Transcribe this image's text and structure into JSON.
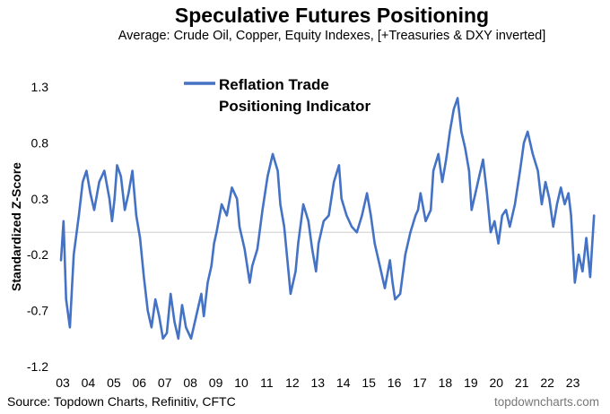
{
  "chart_data": {
    "type": "line",
    "title": "Speculative Futures Positioning",
    "subtitle": "Average: Crude Oil, Copper, Equity Indexes, [+Treasuries & DXY inverted]",
    "ylabel": "Standardized Z-Score",
    "xlabel": "",
    "ylim": [
      -1.2,
      1.3
    ],
    "yticks": [
      "1.3",
      "0.8",
      "0.3",
      "-0.2",
      "-0.7",
      "-1.2"
    ],
    "xlim": [
      2003,
      2024
    ],
    "xticks": [
      "03",
      "04",
      "05",
      "06",
      "07",
      "08",
      "09",
      "10",
      "11",
      "12",
      "13",
      "14",
      "15",
      "16",
      "17",
      "18",
      "19",
      "20",
      "21",
      "22",
      "23"
    ],
    "legend": {
      "label_line1": "Reflation Trade",
      "label_line2": "Positioning Indicator",
      "position": "top-center"
    },
    "color": "#4472C4",
    "series": [
      {
        "name": "Reflation Trade Positioning Indicator",
        "x": [
          2003.0,
          2003.1,
          2003.2,
          2003.35,
          2003.5,
          2003.7,
          2003.85,
          2004.0,
          2004.15,
          2004.3,
          2004.5,
          2004.7,
          2004.9,
          2005.0,
          2005.1,
          2005.2,
          2005.35,
          2005.5,
          2005.65,
          2005.8,
          2005.95,
          2006.1,
          2006.25,
          2006.4,
          2006.55,
          2006.7,
          2006.85,
          2007.0,
          2007.15,
          2007.3,
          2007.45,
          2007.6,
          2007.75,
          2007.9,
          2008.1,
          2008.3,
          2008.5,
          2008.6,
          2008.75,
          2008.9,
          2009.0,
          2009.1,
          2009.3,
          2009.5,
          2009.7,
          2009.9,
          2010.0,
          2010.2,
          2010.4,
          2010.5,
          2010.7,
          2010.9,
          2011.1,
          2011.3,
          2011.5,
          2011.6,
          2011.75,
          2011.9,
          2012.0,
          2012.2,
          2012.3,
          2012.5,
          2012.7,
          2012.85,
          2013.0,
          2013.1,
          2013.3,
          2013.5,
          2013.7,
          2013.9,
          2014.0,
          2014.2,
          2014.4,
          2014.6,
          2014.8,
          2015.0,
          2015.15,
          2015.3,
          2015.5,
          2015.7,
          2015.9,
          2016.0,
          2016.1,
          2016.3,
          2016.5,
          2016.7,
          2016.9,
          2017.0,
          2017.1,
          2017.3,
          2017.5,
          2017.6,
          2017.8,
          2017.95,
          2018.1,
          2018.25,
          2018.4,
          2018.55,
          2018.7,
          2018.85,
          2019.0,
          2019.1,
          2019.25,
          2019.4,
          2019.55,
          2019.7,
          2019.85,
          2020.0,
          2020.15,
          2020.3,
          2020.45,
          2020.6,
          2020.8,
          2021.0,
          2021.15,
          2021.3,
          2021.5,
          2021.7,
          2021.85,
          2022.0,
          2022.15,
          2022.3,
          2022.45,
          2022.6,
          2022.75,
          2022.9,
          2023.0,
          2023.15,
          2023.3,
          2023.45,
          2023.6,
          2023.75,
          2023.9
        ],
        "values": [
          -0.25,
          0.1,
          -0.6,
          -0.85,
          -0.2,
          0.15,
          0.45,
          0.55,
          0.35,
          0.2,
          0.45,
          0.55,
          0.3,
          0.1,
          0.3,
          0.6,
          0.5,
          0.2,
          0.35,
          0.55,
          0.15,
          -0.05,
          -0.4,
          -0.7,
          -0.85,
          -0.6,
          -0.75,
          -0.95,
          -0.9,
          -0.55,
          -0.8,
          -0.95,
          -0.65,
          -0.85,
          -0.95,
          -0.75,
          -0.55,
          -0.75,
          -0.45,
          -0.3,
          -0.1,
          0.0,
          0.25,
          0.15,
          0.4,
          0.3,
          0.05,
          -0.15,
          -0.45,
          -0.3,
          -0.15,
          0.2,
          0.5,
          0.7,
          0.55,
          0.25,
          0.05,
          -0.3,
          -0.55,
          -0.35,
          -0.1,
          0.25,
          0.1,
          -0.15,
          -0.35,
          -0.1,
          0.1,
          0.15,
          0.45,
          0.6,
          0.3,
          0.15,
          0.05,
          0.0,
          0.15,
          0.35,
          0.15,
          -0.1,
          -0.3,
          -0.5,
          -0.25,
          -0.45,
          -0.6,
          -0.55,
          -0.2,
          0.0,
          0.15,
          0.2,
          0.35,
          0.1,
          0.2,
          0.55,
          0.7,
          0.45,
          0.65,
          0.9,
          1.1,
          1.2,
          0.9,
          0.75,
          0.55,
          0.2,
          0.35,
          0.5,
          0.65,
          0.35,
          0.0,
          0.1,
          -0.1,
          0.15,
          0.2,
          0.05,
          0.25,
          0.55,
          0.8,
          0.9,
          0.7,
          0.55,
          0.25,
          0.45,
          0.3,
          0.05,
          0.25,
          0.4,
          0.25,
          0.35,
          0.15,
          -0.45,
          -0.2,
          -0.35,
          -0.05,
          -0.4,
          0.15
        ]
      }
    ]
  },
  "footer": {
    "source": "Source: Topdown Charts, Refinitiv, CFTC",
    "brand": "topdowncharts.com"
  }
}
